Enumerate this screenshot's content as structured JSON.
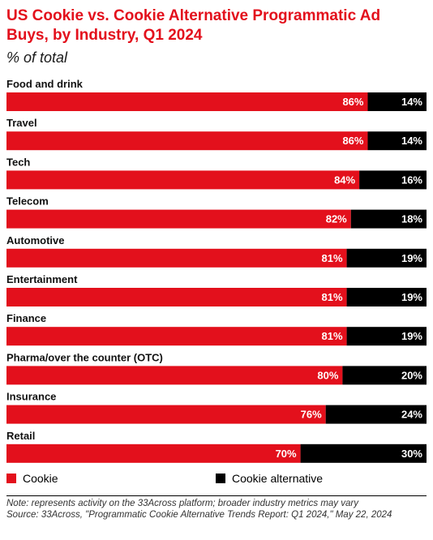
{
  "header": {
    "title": "US Cookie vs. Cookie Alternative Programmatic Ad Buys, by Industry, Q1 2024",
    "subtitle": "% of total"
  },
  "legend": {
    "items": [
      {
        "label": "Cookie",
        "color": "#e3101c"
      },
      {
        "label": "Cookie alternative",
        "color": "#000000"
      }
    ]
  },
  "footer": {
    "note": "Note: represents activity on the 33Across platform; broader industry metrics may vary",
    "source": "Source: 33Across, \"Programmatic Cookie Alternative Trends Report: Q1 2024,\" May 22, 2024"
  },
  "chart_data": {
    "type": "bar",
    "orientation": "horizontal",
    "stacked": true,
    "categories": [
      "Food and drink",
      "Travel",
      "Tech",
      "Telecom",
      "Automotive",
      "Entertainment",
      "Finance",
      "Pharma/over the counter (OTC)",
      "Insurance",
      "Retail"
    ],
    "series": [
      {
        "name": "Cookie",
        "values": [
          86,
          86,
          84,
          82,
          81,
          81,
          81,
          80,
          76,
          70
        ],
        "color": "#e3101c"
      },
      {
        "name": "Cookie alternative",
        "values": [
          14,
          14,
          16,
          18,
          19,
          19,
          19,
          20,
          24,
          30
        ],
        "color": "#000000"
      }
    ],
    "value_suffix": "%",
    "xlim": [
      0,
      100
    ],
    "grid": false,
    "legend_position": "bottom-left"
  }
}
